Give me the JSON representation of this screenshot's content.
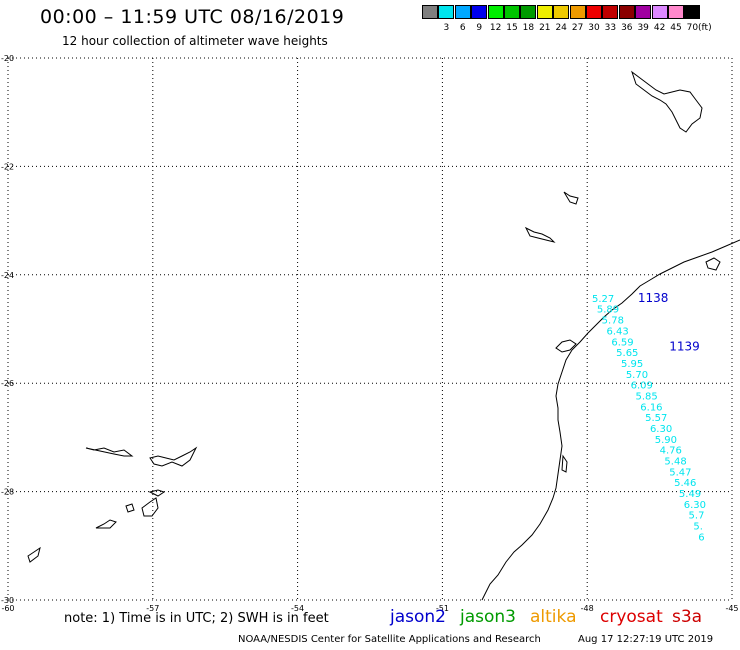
{
  "header": {
    "title": "00:00 – 11:59 UTC 08/16/2019",
    "subtitle": "12 hour collection of altimeter wave heights"
  },
  "legend": {
    "unit": "(ft)",
    "items": [
      {
        "label": "",
        "color": "#7f7f7f"
      },
      {
        "label": "3",
        "color": "#00e5ee"
      },
      {
        "label": "6",
        "color": "#00a8ff"
      },
      {
        "label": "9",
        "color": "#0000ee"
      },
      {
        "label": "12",
        "color": "#00ee00"
      },
      {
        "label": "15",
        "color": "#00c400"
      },
      {
        "label": "18",
        "color": "#009a00"
      },
      {
        "label": "21",
        "color": "#eeee00"
      },
      {
        "label": "24",
        "color": "#eec900"
      },
      {
        "label": "27",
        "color": "#ee9a00"
      },
      {
        "label": "30",
        "color": "#ee0000"
      },
      {
        "label": "33",
        "color": "#c00000"
      },
      {
        "label": "36",
        "color": "#8b0000"
      },
      {
        "label": "39",
        "color": "#a000a0"
      },
      {
        "label": "42",
        "color": "#dd88ff"
      },
      {
        "label": "45",
        "color": "#ff88cc"
      },
      {
        "label": "70",
        "color": "#000000"
      }
    ]
  },
  "map": {
    "lon_range": [
      -60,
      -45
    ],
    "lat_range": [
      -30,
      -20
    ],
    "lat_ticks": [
      {
        "value": -20,
        "label": "-20"
      },
      {
        "value": -22,
        "label": "-22"
      },
      {
        "value": -24,
        "label": "-24"
      },
      {
        "value": -26,
        "label": "-26"
      },
      {
        "value": -28,
        "label": "-28"
      },
      {
        "value": -30,
        "label": "-30"
      }
    ],
    "lon_ticks": [
      {
        "value": -60,
        "label": "-60"
      },
      {
        "value": -57,
        "label": "-57"
      },
      {
        "value": -54,
        "label": "-54"
      },
      {
        "value": -51,
        "label": "-51"
      },
      {
        "value": -48,
        "label": "-48"
      },
      {
        "value": -45,
        "label": "-45"
      }
    ],
    "grid": true,
    "grid_style": "dotted",
    "wave_height_color": "#00e5ee",
    "track_label_color": "#0000cc",
    "track_labels": [
      {
        "text": "1138",
        "lon": -46.95,
        "lat": -24.5
      },
      {
        "text": "1139",
        "lon": -46.3,
        "lat": -25.4
      }
    ],
    "wave_heights": [
      {
        "text": "5.27",
        "lon": -47.9,
        "lat": -24.5
      },
      {
        "text": "5.89",
        "lon": -47.8,
        "lat": -24.7
      },
      {
        "text": "5.78",
        "lon": -47.7,
        "lat": -24.9
      },
      {
        "text": "6.43",
        "lon": -47.6,
        "lat": -25.1
      },
      {
        "text": "6.59",
        "lon": -47.5,
        "lat": -25.3
      },
      {
        "text": "5.65",
        "lon": -47.4,
        "lat": -25.5
      },
      {
        "text": "5.95",
        "lon": -47.3,
        "lat": -25.7
      },
      {
        "text": "5.70",
        "lon": -47.2,
        "lat": -25.9
      },
      {
        "text": "6.09",
        "lon": -47.1,
        "lat": -26.1
      },
      {
        "text": "5.85",
        "lon": -47.0,
        "lat": -26.3
      },
      {
        "text": "6.16",
        "lon": -46.9,
        "lat": -26.5
      },
      {
        "text": "5.57",
        "lon": -46.8,
        "lat": -26.7
      },
      {
        "text": "6.30",
        "lon": -46.7,
        "lat": -26.9
      },
      {
        "text": "5.90",
        "lon": -46.6,
        "lat": -27.1
      },
      {
        "text": "4.76",
        "lon": -46.5,
        "lat": -27.3
      },
      {
        "text": "5.48",
        "lon": -46.4,
        "lat": -27.5
      },
      {
        "text": "5.47",
        "lon": -46.3,
        "lat": -27.7
      },
      {
        "text": "5.46",
        "lon": -46.2,
        "lat": -27.9
      },
      {
        "text": "5.49",
        "lon": -46.1,
        "lat": -28.1
      },
      {
        "text": "6.30",
        "lon": -46.0,
        "lat": -28.3
      },
      {
        "text": "5.7",
        "lon": -45.9,
        "lat": -28.5
      },
      {
        "text": "5.",
        "lon": -45.8,
        "lat": -28.7
      },
      {
        "text": "6",
        "lon": -45.7,
        "lat": -28.9
      }
    ]
  },
  "note": "note:  1) Time is in UTC;  2) SWH is in feet",
  "satellites": [
    {
      "name": "jason2",
      "color": "#0000cc"
    },
    {
      "name": "jason3",
      "color": "#009a00"
    },
    {
      "name": "altika",
      "color": "#ee9a00"
    },
    {
      "name": "cryosat",
      "color": "#dd0000"
    },
    {
      "name": "s3a",
      "color": "#cc0000"
    }
  ],
  "footer": {
    "credit": "NOAA/NESDIS Center for Satellite Applications and Research",
    "timestamp": "Aug 17 12:27:19 UTC 2019"
  }
}
